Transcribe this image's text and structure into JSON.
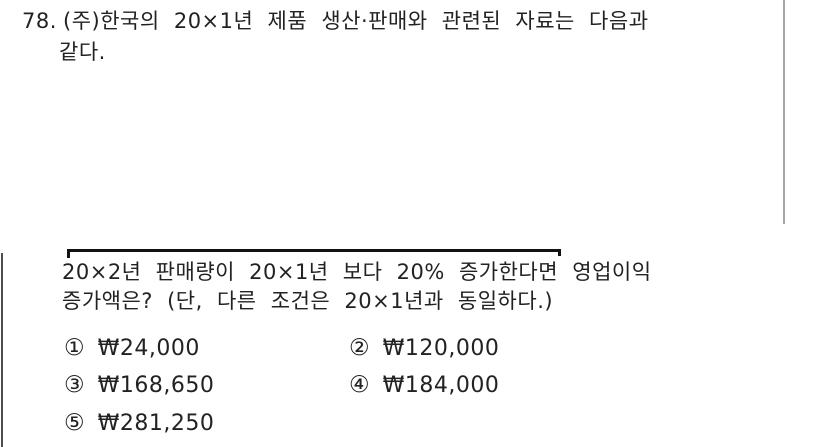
{
  "question": {
    "number": "78.",
    "stem_line1": "(주)한국의 20×1년 제품 생산·판매와 관련된 자료는 다음과",
    "stem_line2": "같다.",
    "body_line1": "20×2년 판매량이 20×1년 보다 20% 증가한다면 영업이익",
    "body_line2": "증가액은? (단, 다른 조건은 20×1년과 동일하다.)",
    "choices": [
      {
        "marker": "①",
        "value": "₩24,000"
      },
      {
        "marker": "②",
        "value": "₩120,000"
      },
      {
        "marker": "③",
        "value": "₩168,650"
      },
      {
        "marker": "④",
        "value": "₩184,000"
      },
      {
        "marker": "⑤",
        "value": "₩281,250"
      }
    ]
  },
  "colors": {
    "text": "#222222",
    "rule": "#111111",
    "divider_right": "#a6a6a6",
    "divider_left": "#4d4d4d",
    "background": "#ffffff"
  }
}
